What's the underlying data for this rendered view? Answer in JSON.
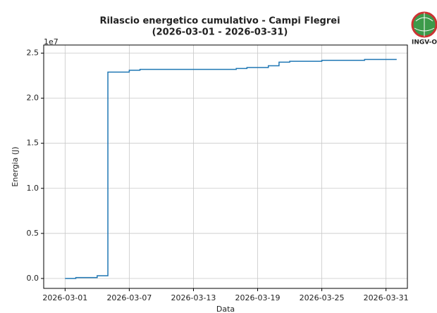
{
  "chart_data": {
    "type": "step",
    "title": "Rilascio energetico cumulativo - Campi Flegrei",
    "subtitle": "(2026-03-01 - 2026-03-31)",
    "xlabel": "Data",
    "ylabel": "Energia (J)",
    "y_offset_text": "1e7",
    "logo": "INGV-OV",
    "x": [
      "2026-03-01",
      "2026-03-02",
      "2026-03-04",
      "2026-03-05",
      "2026-03-07",
      "2026-03-08",
      "2026-03-17",
      "2026-03-18",
      "2026-03-20",
      "2026-03-21",
      "2026-03-22",
      "2026-03-25",
      "2026-03-29",
      "2026-04-01"
    ],
    "series": [
      {
        "color": "#1f77b4",
        "values": [
          0.0,
          0.01,
          0.03,
          2.29,
          2.31,
          2.32,
          2.33,
          2.34,
          2.36,
          2.4,
          2.41,
          2.42,
          2.43,
          2.43
        ]
      }
    ],
    "xlim": [
      "2026-02-27",
      "2026-04-02"
    ],
    "xticks": [
      "2026-03-01",
      "2026-03-07",
      "2026-03-13",
      "2026-03-19",
      "2026-03-25",
      "2026-03-31"
    ],
    "ylim": [
      -0.11,
      2.59
    ],
    "yticks": [
      {
        "value": 0,
        "label": "0.0"
      },
      0.5,
      {
        "value": 1,
        "label": "1.0"
      },
      1.5,
      {
        "value": 2,
        "label": "2.0"
      },
      2.5
    ],
    "grid": true
  }
}
